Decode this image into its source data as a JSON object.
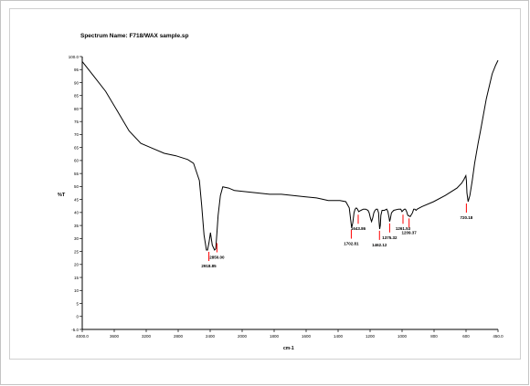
{
  "chart_data": {
    "type": "line",
    "title": "Spectrum Name: F718/WAX sample.sp",
    "ylabel": "%T",
    "xlabel": "cm-1",
    "xlim": [
      4000.0,
      450.0
    ],
    "ylim": [
      -10.0,
      100.0
    ],
    "x_ticks": [
      "4000.0",
      "3600",
      "3200",
      "2800",
      "2400",
      "2000",
      "1800",
      "1600",
      "1400",
      "1200",
      "1000",
      "800",
      "600",
      "450.0"
    ],
    "y_ticks": [
      "100.0",
      "95",
      "90",
      "85",
      "80",
      "75",
      "70",
      "65",
      "60",
      "55",
      "50",
      "45",
      "40",
      "35",
      "30",
      "25",
      "20",
      "15",
      "10",
      "5",
      "0",
      "-5.0"
    ],
    "series": [
      {
        "x": [
          4000,
          3900,
          3800,
          3700,
          3600,
          3500,
          3400,
          3300,
          3200,
          3100,
          3050,
          3000,
          2980,
          2960,
          2940,
          2930,
          2918,
          2905,
          2890,
          2870,
          2860,
          2850,
          2840,
          2820,
          2800,
          2750,
          2700,
          2600,
          2500,
          2400,
          2300,
          2200,
          2100,
          2000,
          1950,
          1900,
          1800,
          1750,
          1720,
          1710,
          1700,
          1690,
          1680,
          1670,
          1660,
          1650,
          1640,
          1620,
          1600,
          1580,
          1560,
          1550,
          1540,
          1530,
          1520,
          1510,
          1500,
          1490,
          1480,
          1470,
          1465,
          1460,
          1455,
          1450,
          1440,
          1420,
          1400,
          1390,
          1380,
          1375,
          1370,
          1360,
          1340,
          1300,
          1280,
          1270,
          1260,
          1250,
          1240,
          1230,
          1220,
          1200,
          1180,
          1170,
          1160,
          1150,
          1140,
          1120,
          1100,
          1000,
          900,
          800,
          760,
          740,
          730,
          725,
          720,
          715,
          705,
          690,
          670,
          650,
          620,
          600,
          550,
          500,
          470,
          450
        ],
        "y": [
          98.0,
          92.0,
          86.0,
          78.0,
          70.0,
          65.0,
          63.0,
          61.0,
          60.0,
          58.5,
          57.0,
          50.0,
          40.0,
          28.0,
          22.0,
          22.0,
          25.0,
          29.0,
          24.0,
          22.0,
          22.5,
          29.0,
          36.0,
          44.0,
          47.5,
          47.0,
          46.0,
          45.5,
          45.0,
          44.5,
          44.5,
          44.0,
          43.5,
          43.0,
          42.5,
          42.0,
          42.0,
          41.5,
          39.0,
          35.0,
          31.0,
          33.0,
          37.0,
          38.5,
          39.0,
          38.5,
          37.5,
          38.0,
          38.5,
          38.5,
          38.0,
          37.0,
          35.0,
          33.5,
          35.0,
          37.0,
          38.0,
          38.5,
          38.5,
          37.0,
          33.0,
          30.5,
          32.0,
          36.0,
          38.0,
          38.0,
          38.5,
          37.5,
          35.0,
          33.5,
          34.5,
          37.0,
          38.0,
          38.5,
          38.5,
          37.5,
          38.0,
          38.5,
          38.5,
          37.5,
          36.0,
          35.5,
          37.0,
          38.5,
          38.5,
          38.0,
          38.5,
          39.0,
          39.5,
          41.5,
          44.0,
          47.0,
          49.0,
          50.5,
          51.5,
          52.0,
          50.0,
          45.0,
          41.5,
          44.0,
          50.0,
          57.0,
          65.0,
          70.0,
          83.0,
          93.0,
          96.5,
          98.5
        ]
      }
    ],
    "peaks": [
      {
        "x": 2918.8,
        "y": 22.0,
        "label": "2918.85"
      },
      {
        "x": 2850.0,
        "y": 25.5,
        "label": "2850.00"
      },
      {
        "x": 1702.8,
        "y": 31.0,
        "label": "1702.81"
      },
      {
        "x": 1643.8,
        "y": 37.0,
        "label": "1643.86"
      },
      {
        "x": 1462.1,
        "y": 30.5,
        "label": "1462.12"
      },
      {
        "x": 1375.3,
        "y": 33.5,
        "label": "1375.32"
      },
      {
        "x": 1261.5,
        "y": 37.0,
        "label": "1261.53"
      },
      {
        "x": 1209.3,
        "y": 35.5,
        "label": "1209.37"
      },
      {
        "x": 720.1,
        "y": 41.5,
        "label": "720.18"
      }
    ],
    "colors": {
      "line": "#000000",
      "peak_marker": "#ff0000"
    },
    "grid": false
  }
}
